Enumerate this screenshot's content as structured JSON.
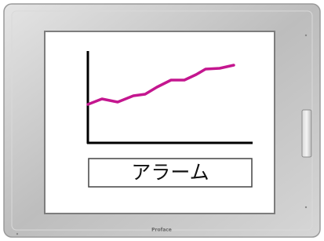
{
  "screen": {
    "button": "アラーム"
  },
  "brand": "Proface"
}
